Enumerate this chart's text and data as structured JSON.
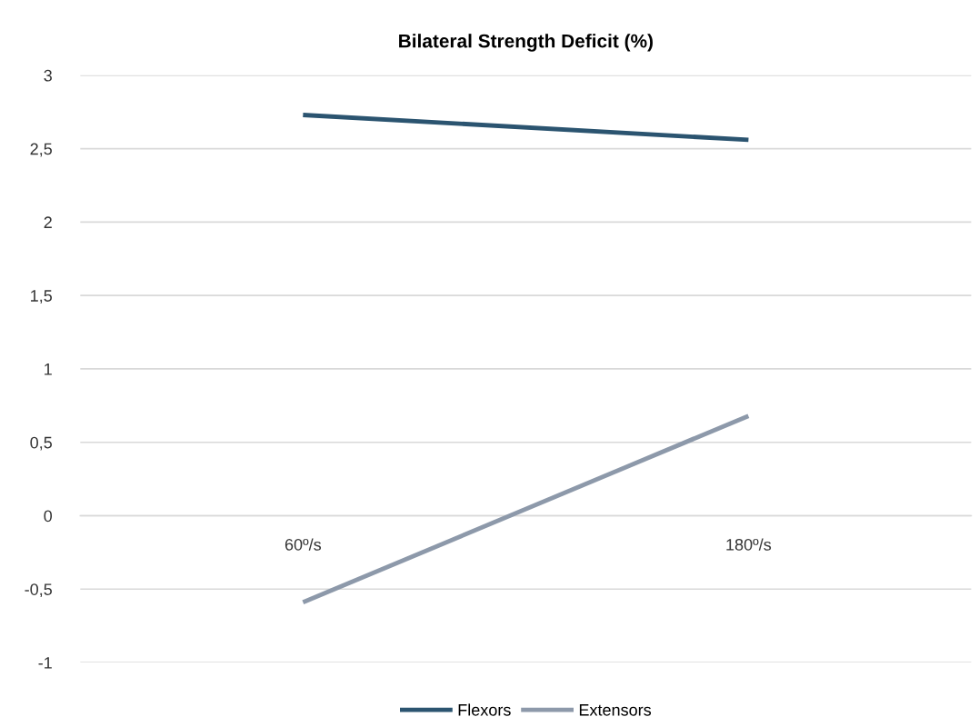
{
  "chart_data": {
    "type": "line",
    "title": "Bilateral Strength Deficit (%)",
    "categories": [
      "60º/s",
      "180º/s"
    ],
    "series": [
      {
        "name": "Flexors",
        "color": "#2b5470",
        "values": [
          2.73,
          2.56
        ]
      },
      {
        "name": "Extensors",
        "color": "#8d99aa",
        "values": [
          -0.59,
          0.68
        ]
      }
    ],
    "ylim": [
      -1,
      3
    ],
    "yticks": [
      {
        "value": -1,
        "label": "-1"
      },
      {
        "value": -0.5,
        "label": "-0,5"
      },
      {
        "value": 0,
        "label": "0"
      },
      {
        "value": 0.5,
        "label": "0,5"
      },
      {
        "value": 1,
        "label": "1"
      },
      {
        "value": 1.5,
        "label": "1,5"
      },
      {
        "value": 2,
        "label": "2"
      },
      {
        "value": 2.5,
        "label": "2,5"
      },
      {
        "value": 3,
        "label": "3"
      }
    ],
    "grid": "y",
    "legend": "bottom",
    "marker": "none",
    "line_style": "solid"
  }
}
